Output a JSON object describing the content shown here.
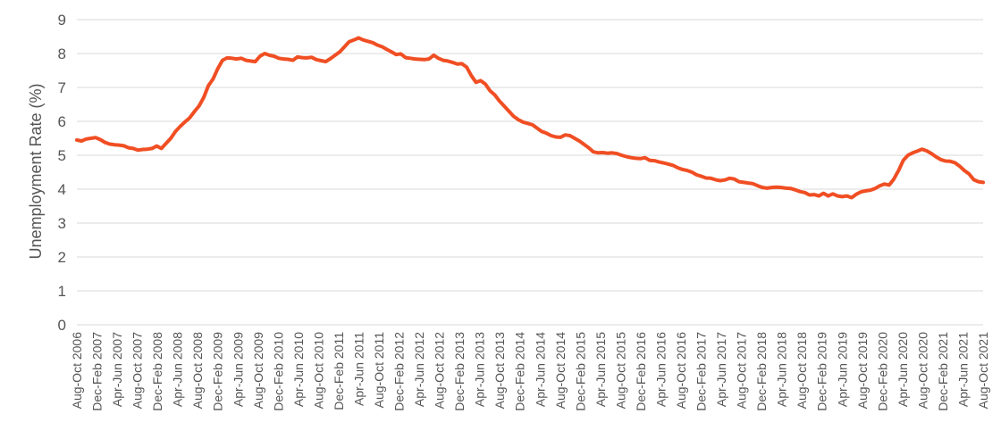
{
  "chart_data": {
    "type": "line",
    "ylabel": "Unemployment Rate (%)",
    "ylim": [
      0,
      9
    ],
    "yticks": [
      "0",
      "1",
      "2",
      "3",
      "4",
      "5",
      "6",
      "7",
      "8",
      "9"
    ],
    "grid": true,
    "legend": "none",
    "colors": {
      "line": "#f04e23",
      "grid": "#d9d9d9",
      "text": "#555555"
    },
    "x_ticks": [
      "Aug-Oct 2006",
      "Dec-Feb 2007",
      "Apr-Jun 2007",
      "Aug-Oct 2007",
      "Dec-Feb 2008",
      "Apr-Jun 2008",
      "Aug-Oct 2008",
      "Dec-Feb 2009",
      "Apr-Jun 2009",
      "Aug-Oct 2009",
      "Dec-Feb 2010",
      "Apr-Jun 2010",
      "Aug-Oct 2010",
      "Dec-Feb 2011",
      "Apr-Jun 2011",
      "Aug-Oct 2011",
      "Dec-Feb 2012",
      "Apr-Jun 2012",
      "Aug-Oct 2012",
      "Dec-Feb 2013",
      "Apr-Jun 2013",
      "Aug-Oct 2013",
      "Dec-Feb 2014",
      "Apr-Jun 2014",
      "Aug-Oct 2014",
      "Dec-Feb 2015",
      "Apr-Jun 2015",
      "Aug-Oct 2015",
      "Dec-Feb 2016",
      "Apr-Jun 2016",
      "Aug-Oct 2016",
      "Dec-Feb 2017",
      "Apr-Jun 2017",
      "Aug-Oct 2017",
      "Dec-Feb 2018",
      "Apr-Jun 2018",
      "Aug-Oct 2018",
      "Dec-Feb 2019",
      "Apr-Jun 2019",
      "Aug-Oct 2019",
      "Dec-Feb 2020",
      "Apr-Jun 2020",
      "Aug-Oct 2020",
      "Dec-Feb 2021",
      "Apr-Jun 2021",
      "Aug-Oct 2021"
    ],
    "series": [
      {
        "values": [
          5.45,
          5.42,
          5.48,
          5.5,
          5.52,
          5.46,
          5.38,
          5.33,
          5.31,
          5.3,
          5.28,
          5.22,
          5.2,
          5.15,
          5.17,
          5.18,
          5.2,
          5.27,
          5.2,
          5.35,
          5.5,
          5.7,
          5.85,
          5.98,
          6.1,
          6.28,
          6.45,
          6.7,
          7.05,
          7.25,
          7.55,
          7.8,
          7.87,
          7.86,
          7.84,
          7.86,
          7.8,
          7.78,
          7.76,
          7.92,
          8.0,
          7.95,
          7.92,
          7.86,
          7.84,
          7.83,
          7.8,
          7.9,
          7.88,
          7.87,
          7.89,
          7.82,
          7.79,
          7.76,
          7.85,
          7.95,
          8.05,
          8.2,
          8.35,
          8.4,
          8.46,
          8.4,
          8.36,
          8.32,
          8.25,
          8.2,
          8.12,
          8.05,
          7.97,
          7.99,
          7.88,
          7.86,
          7.84,
          7.83,
          7.82,
          7.84,
          7.95,
          7.86,
          7.8,
          7.78,
          7.74,
          7.69,
          7.7,
          7.6,
          7.35,
          7.15,
          7.2,
          7.1,
          6.9,
          6.78,
          6.6,
          6.45,
          6.3,
          6.15,
          6.05,
          5.98,
          5.94,
          5.9,
          5.8,
          5.7,
          5.65,
          5.58,
          5.54,
          5.53,
          5.6,
          5.58,
          5.5,
          5.42,
          5.32,
          5.22,
          5.1,
          5.07,
          5.08,
          5.06,
          5.07,
          5.05,
          5.0,
          4.96,
          4.93,
          4.91,
          4.9,
          4.93,
          4.85,
          4.84,
          4.8,
          4.77,
          4.74,
          4.7,
          4.63,
          4.58,
          4.55,
          4.5,
          4.42,
          4.38,
          4.33,
          4.32,
          4.28,
          4.25,
          4.27,
          4.32,
          4.3,
          4.22,
          4.2,
          4.18,
          4.16,
          4.1,
          4.05,
          4.03,
          4.05,
          4.06,
          4.05,
          4.03,
          4.02,
          3.98,
          3.93,
          3.9,
          3.83,
          3.84,
          3.8,
          3.88,
          3.8,
          3.86,
          3.8,
          3.78,
          3.8,
          3.75,
          3.85,
          3.92,
          3.95,
          3.97,
          4.02,
          4.1,
          4.15,
          4.12,
          4.3,
          4.55,
          4.85,
          5.0,
          5.07,
          5.12,
          5.18,
          5.13,
          5.05,
          4.95,
          4.87,
          4.83,
          4.82,
          4.78,
          4.68,
          4.55,
          4.45,
          4.28,
          4.22,
          4.2
        ]
      }
    ]
  }
}
